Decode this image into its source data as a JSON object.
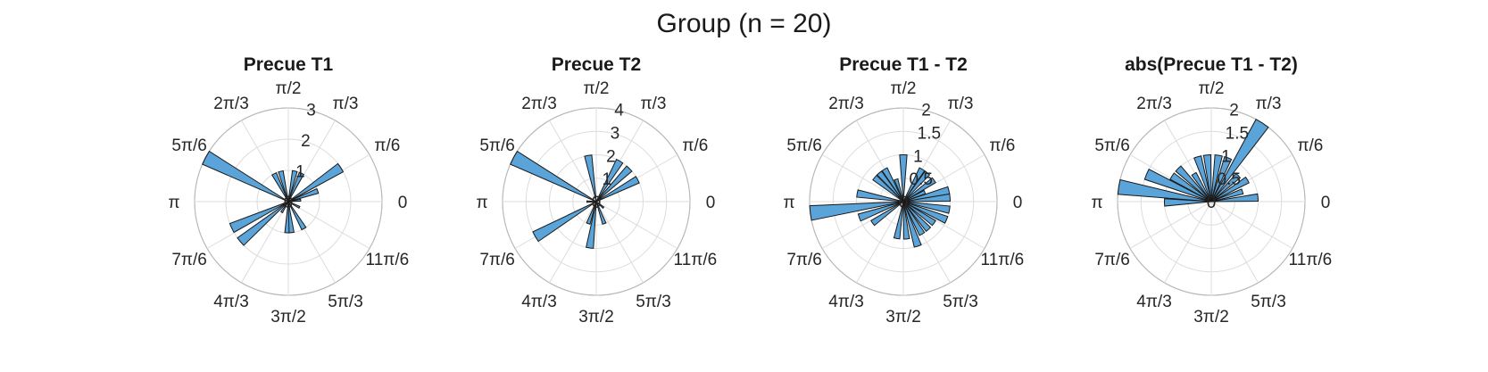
{
  "figure_title": "Group (n = 20)",
  "bar_color": "#5ba4d9",
  "edge_color": "#1a1a1a",
  "angle_labels": [
    "0",
    "π/6",
    "π/3",
    "π/2",
    "2π/3",
    "5π/6",
    "π",
    "7π/6",
    "4π/3",
    "3π/2",
    "5π/3",
    "11π/6"
  ],
  "chart_data": [
    {
      "type": "polar-histogram",
      "title": "Precue T1",
      "rmax": 3,
      "rticks": [
        1,
        2,
        3
      ],
      "rtick_labels": [
        "1",
        "2",
        "3"
      ],
      "bin_width_deg": 9,
      "bars": [
        {
          "theta": 7,
          "r": 0.4
        },
        {
          "theta": 20,
          "r": 1.0
        },
        {
          "theta": 33,
          "r": 2.0
        },
        {
          "theta": 65,
          "r": 1.0
        },
        {
          "theta": 78,
          "r": 1.0
        },
        {
          "theta": 104,
          "r": 1.0
        },
        {
          "theta": 117,
          "r": 1.0
        },
        {
          "theta": 152,
          "r": 3.0
        },
        {
          "theta": 205,
          "r": 2.0
        },
        {
          "theta": 220,
          "r": 2.0
        },
        {
          "theta": 238,
          "r": 0.4
        },
        {
          "theta": 268,
          "r": 1.0
        },
        {
          "theta": 276,
          "r": 1.0
        },
        {
          "theta": 300,
          "r": 1.0
        },
        {
          "theta": 333,
          "r": 0.4
        }
      ]
    },
    {
      "type": "polar-histogram",
      "title": "Precue T2",
      "rmax": 4,
      "rticks": [
        1,
        2,
        3,
        4
      ],
      "rtick_labels": [
        "1",
        "2",
        "3",
        "4"
      ],
      "bin_width_deg": 9,
      "bars": [
        {
          "theta": 28,
          "r": 2.0
        },
        {
          "theta": 45,
          "r": 2.0
        },
        {
          "theta": 60,
          "r": 2.0
        },
        {
          "theta": 100,
          "r": 2.0
        },
        {
          "theta": 152,
          "r": 4.0
        },
        {
          "theta": 180,
          "r": 0.4
        },
        {
          "theta": 210,
          "r": 3.0
        },
        {
          "theta": 250,
          "r": 1.0
        },
        {
          "theta": 262,
          "r": 2.0
        },
        {
          "theta": 290,
          "r": 1.0
        },
        {
          "theta": 320,
          "r": 0.4
        }
      ]
    },
    {
      "type": "polar-histogram",
      "title": "Precue T1 - T2",
      "rmax": 2,
      "rticks": [
        0.5,
        1,
        1.5,
        2
      ],
      "rtick_labels": [
        "0.5",
        "1",
        "1.5",
        "2"
      ],
      "bin_width_deg": 9,
      "bars": [
        {
          "theta": 5,
          "r": 1.0
        },
        {
          "theta": 14,
          "r": 1.0
        },
        {
          "theta": 24,
          "r": 0.5
        },
        {
          "theta": 35,
          "r": 0.8
        },
        {
          "theta": 50,
          "r": 0.8
        },
        {
          "theta": 60,
          "r": 0.8
        },
        {
          "theta": 90,
          "r": 1.0
        },
        {
          "theta": 108,
          "r": 0.5
        },
        {
          "theta": 120,
          "r": 0.8
        },
        {
          "theta": 130,
          "r": 0.8
        },
        {
          "theta": 140,
          "r": 0.8
        },
        {
          "theta": 170,
          "r": 1.0
        },
        {
          "theta": 187,
          "r": 2.0
        },
        {
          "theta": 200,
          "r": 1.0
        },
        {
          "theta": 215,
          "r": 0.8
        },
        {
          "theta": 260,
          "r": 0.8
        },
        {
          "theta": 275,
          "r": 0.8
        },
        {
          "theta": 288,
          "r": 1.0
        },
        {
          "theta": 300,
          "r": 0.8
        },
        {
          "theta": 312,
          "r": 0.8
        },
        {
          "theta": 325,
          "r": 0.8
        },
        {
          "theta": 337,
          "r": 1.0
        },
        {
          "theta": 350,
          "r": 1.0
        }
      ]
    },
    {
      "type": "polar-histogram",
      "title": "abs(Precue T1 - T2)",
      "rmax": 2,
      "rticks": [
        0.5,
        1,
        1.5,
        2
      ],
      "rtick_labels": [
        "0.5",
        "1",
        "1.5",
        "2"
      ],
      "bin_width_deg": 9,
      "bars": [
        {
          "theta": 5,
          "r": 1.0
        },
        {
          "theta": 18,
          "r": 0.7
        },
        {
          "theta": 31,
          "r": 0.9
        },
        {
          "theta": 44,
          "r": 0.8
        },
        {
          "theta": 57,
          "r": 2.0
        },
        {
          "theta": 69,
          "r": 1.0
        },
        {
          "theta": 81,
          "r": 1.0
        },
        {
          "theta": 95,
          "r": 1.0
        },
        {
          "theta": 107,
          "r": 1.0
        },
        {
          "theta": 122,
          "r": 0.7
        },
        {
          "theta": 135,
          "r": 1.0
        },
        {
          "theta": 147,
          "r": 1.0
        },
        {
          "theta": 157,
          "r": 1.5
        },
        {
          "theta": 171,
          "r": 2.0
        },
        {
          "theta": 181,
          "r": 1.0
        }
      ]
    }
  ]
}
